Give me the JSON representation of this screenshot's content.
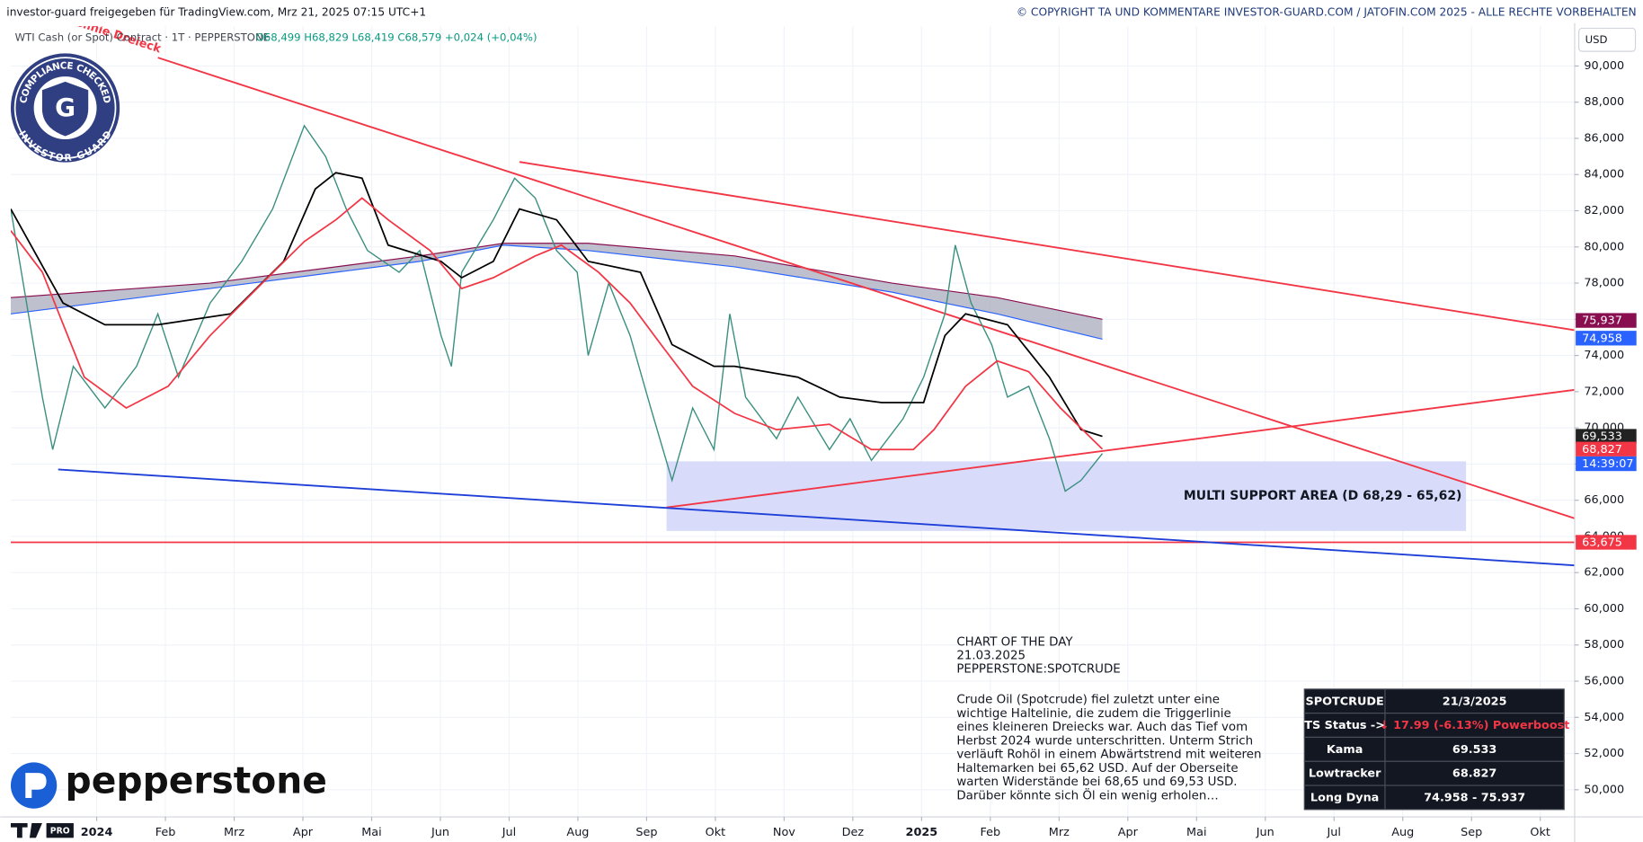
{
  "header": {
    "left": "investor-guard freigegeben für TradingView.com, Mrz 21, 2025 07:15 UTC+1",
    "right": "© COPYRIGHT TA UND KOMMENTARE INVESTOR-GUARD.COM / JATOFIN.COM 2025 - ALLE RECHTE VORBEHALTEN"
  },
  "symbol": {
    "name": "WTI Cash (or Spot) Contract · 1T · PEPPERSTONE",
    "ohlc": "O68,499 H68,829 L68,419 C68,579 +0,024 (+0,04%)"
  },
  "badge": {
    "top": "COMPLIANCE CHECKED",
    "bottom": "INVESTOR-GUARD",
    "letter": "G"
  },
  "logo": "pepperstone",
  "tv_badge": "PRO",
  "currency": "USD",
  "chart_data": {
    "type": "line",
    "xlim": [
      -1.25,
      21.5
    ],
    "ylim": [
      48.5,
      92.2
    ],
    "grid": true,
    "xticks": [
      {
        "value": 0,
        "label": "2024"
      },
      {
        "value": 1,
        "label": "Feb"
      },
      {
        "value": 2,
        "label": "Mrz"
      },
      {
        "value": 3,
        "label": "Apr"
      },
      {
        "value": 4,
        "label": "Mai"
      },
      {
        "value": 5,
        "label": "Jun"
      },
      {
        "value": 6,
        "label": "Jul"
      },
      {
        "value": 7,
        "label": "Aug"
      },
      {
        "value": 8,
        "label": "Sep"
      },
      {
        "value": 9,
        "label": "Okt"
      },
      {
        "value": 10,
        "label": "Nov"
      },
      {
        "value": 11,
        "label": "Dez"
      },
      {
        "value": 12,
        "label": "2025"
      },
      {
        "value": 13,
        "label": "Feb"
      },
      {
        "value": 14,
        "label": "Mrz"
      },
      {
        "value": 15,
        "label": "Apr"
      },
      {
        "value": 16,
        "label": "Mai"
      },
      {
        "value": 17,
        "label": "Jun"
      },
      {
        "value": 18,
        "label": "Jul"
      },
      {
        "value": 19,
        "label": "Aug"
      },
      {
        "value": 20,
        "label": "Sep"
      },
      {
        "value": 21,
        "label": "Okt"
      }
    ],
    "yticks": [
      {
        "value": 50,
        "label": "50,000"
      },
      {
        "value": 52,
        "label": "52,000"
      },
      {
        "value": 54,
        "label": "54,000"
      },
      {
        "value": 56,
        "label": "56,000"
      },
      {
        "value": 58,
        "label": "58,000"
      },
      {
        "value": 60,
        "label": "60,000"
      },
      {
        "value": 62,
        "label": "62,000"
      },
      {
        "value": 64,
        "label": "64,000"
      },
      {
        "value": 66,
        "label": "66,000"
      },
      {
        "value": 68,
        "label": "68,000"
      },
      {
        "value": 70,
        "label": "70,000"
      },
      {
        "value": 72,
        "label": "72,000"
      },
      {
        "value": 74,
        "label": "74,000"
      },
      {
        "value": 76,
        "label": "76,000"
      },
      {
        "value": 78,
        "label": "78,000"
      },
      {
        "value": 80,
        "label": "80,000"
      },
      {
        "value": 82,
        "label": "82,000"
      },
      {
        "value": 84,
        "label": "84,000"
      },
      {
        "value": 86,
        "label": "86,000"
      },
      {
        "value": 88,
        "label": "88,000"
      },
      {
        "value": 90,
        "label": "90,000"
      }
    ],
    "cloud": {
      "color": "#a9abbd",
      "x": [
        -1.25,
        1.65,
        4.7,
        5.92,
        7.15,
        9.28,
        11.57,
        13.1,
        14.63
      ],
      "upper": [
        77.2,
        78.0,
        79.5,
        80.2,
        80.2,
        79.5,
        78.0,
        77.2,
        76.0
      ],
      "lower": [
        76.3,
        77.7,
        79.2,
        80.1,
        79.8,
        78.9,
        77.5,
        76.3,
        74.9
      ],
      "upper_color": "#880e4f",
      "lower_color": "#2962ff"
    },
    "zones": [
      {
        "x": [
          8.29,
          19.92
        ],
        "y": [
          64.3,
          68.15
        ],
        "color": "#d8dcfa",
        "label": "MULTI SUPPORT AREA (D 68,29 - 65,62)"
      }
    ],
    "lines": [
      {
        "x": [
          0.89,
          21.5
        ],
        "y": [
          90.46,
          65.0
        ],
        "color": "#f23645"
      },
      {
        "x": [
          6.15,
          21.5
        ],
        "y": [
          84.7,
          75.4
        ],
        "color": "#f23645"
      },
      {
        "x": [
          8.29,
          21.5
        ],
        "y": [
          65.6,
          72.1
        ],
        "color": "#f23645"
      },
      {
        "x": [
          -0.56,
          21.5
        ],
        "y": [
          67.7,
          62.4
        ],
        "color": "#1e3fd8"
      }
    ],
    "line_label": {
      "text": "Abwärtslinie Dreieck",
      "color": "#f23645"
    },
    "hlines": [
      {
        "value": 63.675,
        "color": "#f23645"
      }
    ],
    "series": [
      {
        "color": "#3a8f7f",
        "x": [
          -1.25,
          -0.79,
          -0.64,
          -0.34,
          0.12,
          0.58,
          0.89,
          1.19,
          1.65,
          2.11,
          2.56,
          3.02,
          3.33,
          3.63,
          3.94,
          4.4,
          4.7,
          5.01,
          5.16,
          5.31,
          5.77,
          6.08,
          6.38,
          6.69,
          6.99,
          7.15,
          7.45,
          7.76,
          8.06,
          8.37,
          8.67,
          8.98,
          9.21,
          9.44,
          9.89,
          10.2,
          10.66,
          10.96,
          11.27,
          11.73,
          12.03,
          12.34,
          12.49,
          12.72,
          13.02,
          13.25,
          13.56,
          13.86,
          14.09,
          14.32,
          14.63
        ],
        "values": [
          82.1,
          71.7,
          68.8,
          73.4,
          71.1,
          73.4,
          76.3,
          72.8,
          76.9,
          79.2,
          82.1,
          86.7,
          85,
          82.1,
          79.8,
          78.6,
          79.8,
          75.1,
          73.4,
          78.6,
          81.5,
          83.8,
          82.7,
          79.8,
          78.6,
          74,
          78,
          75.1,
          71.1,
          67.1,
          71.1,
          68.8,
          76.3,
          71.7,
          69.4,
          71.7,
          68.8,
          70.5,
          68.2,
          70.5,
          72.8,
          76.3,
          80.1,
          76.9,
          74.6,
          71.7,
          72.3,
          69.4,
          66.5,
          67.1,
          68.58
        ]
      },
      {
        "color": "#000000",
        "x": [
          -1.25,
          -0.49,
          0.12,
          0.89,
          1.95,
          2.72,
          3.18,
          3.48,
          3.86,
          4.24,
          5.01,
          5.31,
          5.77,
          6.15,
          6.69,
          7.15,
          7.91,
          8.37,
          8.98,
          9.28,
          10.2,
          10.81,
          11.42,
          12.03,
          12.34,
          12.64,
          13.25,
          13.86,
          14.32,
          14.63
        ],
        "values": [
          82.1,
          76.9,
          75.7,
          75.7,
          76.3,
          79.2,
          83.2,
          84.1,
          83.8,
          80.1,
          79.2,
          78.3,
          79.2,
          82.1,
          81.5,
          79.2,
          78.6,
          74.6,
          73.4,
          73.4,
          72.8,
          71.7,
          71.4,
          71.4,
          75.1,
          76.3,
          75.7,
          72.8,
          69.9,
          69.533
        ]
      },
      {
        "color": "#f23645",
        "x": [
          -1.25,
          -0.79,
          -0.18,
          0.43,
          1.04,
          1.65,
          2.41,
          3.02,
          3.48,
          3.86,
          4.24,
          4.85,
          5.31,
          5.77,
          6.38,
          6.76,
          7.3,
          7.76,
          8.21,
          8.67,
          9.28,
          9.89,
          10.66,
          11.27,
          11.88,
          12.18,
          12.64,
          13.1,
          13.56,
          14.02,
          14.63
        ],
        "values": [
          80.9,
          78.6,
          72.8,
          71.1,
          72.3,
          75.1,
          78,
          80.3,
          81.5,
          82.7,
          81.5,
          79.8,
          77.7,
          78.3,
          79.5,
          80.1,
          78.6,
          76.9,
          74.6,
          72.3,
          70.8,
          69.9,
          70.2,
          68.8,
          68.8,
          69.9,
          72.3,
          73.7,
          73.1,
          71.1,
          68.827
        ]
      }
    ],
    "price_tags": [
      {
        "value": 75.937,
        "label": "75,937",
        "color": "#880e4f"
      },
      {
        "value": 74.958,
        "label": "74,958",
        "color": "#2962ff"
      },
      {
        "value": 69.533,
        "label": "69,533",
        "color": "#222222"
      },
      {
        "value": 68.827,
        "label": "68,827",
        "color": "#f23645"
      },
      {
        "value": 63.675,
        "label": "63,675",
        "color": "#f23645"
      }
    ],
    "countdown": {
      "text": "14:39:07",
      "color": "#2962ff"
    }
  },
  "commentary": {
    "title_lines": [
      "CHART OF THE DAY",
      "21.03.2025",
      "PEPPERSTONE:SPOTCRUDE"
    ],
    "body_lines": [
      "Crude Oil (Spotcrude) fiel zuletzt unter eine",
      "wichtige Haltelinie, die zudem die Triggerlinie",
      "eines kleineren Dreiecks war. Auch das Tief vom",
      "Herbst 2024 wurde unterschritten. Unterm Strich",
      "verläuft Rohöl in einem Abwärtstrend mit weiteren",
      "Haltemarken bei 65,62 USD. Auf der Oberseite",
      "warten Widerstände bei 68,65 und 69,53 USD.",
      "Darüber könnte sich Öl ein wenig erholen…"
    ]
  },
  "table": {
    "rows": [
      [
        "SPOTCRUDE",
        "21/3/2025"
      ],
      [
        "TS Status ->",
        "↓ 17.99 (-6.13%)  Powerboost"
      ],
      [
        "Kama",
        "69.533"
      ],
      [
        "Lowtracker",
        "68.827"
      ],
      [
        "Long Dyna",
        "74.958 - 75.937"
      ]
    ],
    "alert_color": "#f23645"
  }
}
